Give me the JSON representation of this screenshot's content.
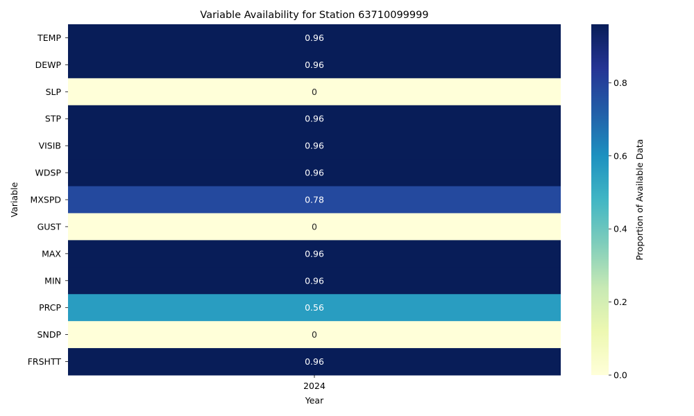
{
  "chart_data": {
    "type": "heatmap",
    "title": "Variable Availability for Station 63710099999",
    "xlabel": "Year",
    "ylabel": "Variable",
    "colorbar_label": "Proportion of Available Data",
    "colormap": "YlGnBu",
    "x_categories": [
      "2024"
    ],
    "y_categories": [
      "TEMP",
      "DEWP",
      "SLP",
      "STP",
      "VISIB",
      "WDSP",
      "MXSPD",
      "GUST",
      "MAX",
      "MIN",
      "PRCP",
      "SNDP",
      "FRSHTT"
    ],
    "values": [
      [
        0.96
      ],
      [
        0.96
      ],
      [
        0
      ],
      [
        0.96
      ],
      [
        0.96
      ],
      [
        0.96
      ],
      [
        0.78
      ],
      [
        0
      ],
      [
        0.96
      ],
      [
        0.96
      ],
      [
        0.56
      ],
      [
        0
      ],
      [
        0.96
      ]
    ],
    "value_labels": [
      [
        "0.96"
      ],
      [
        "0.96"
      ],
      [
        "0"
      ],
      [
        "0.96"
      ],
      [
        "0.96"
      ],
      [
        "0.96"
      ],
      [
        "0.78"
      ],
      [
        "0"
      ],
      [
        "0.96"
      ],
      [
        "0.96"
      ],
      [
        "0.56"
      ],
      [
        "0"
      ],
      [
        "0.96"
      ]
    ],
    "color_range": [
      0,
      0.96
    ],
    "colorbar_ticks": [
      "0.0",
      "0.2",
      "0.4",
      "0.6",
      "0.8"
    ],
    "colorbar_tick_values": [
      0,
      0.2,
      0.4,
      0.6,
      0.8
    ]
  }
}
